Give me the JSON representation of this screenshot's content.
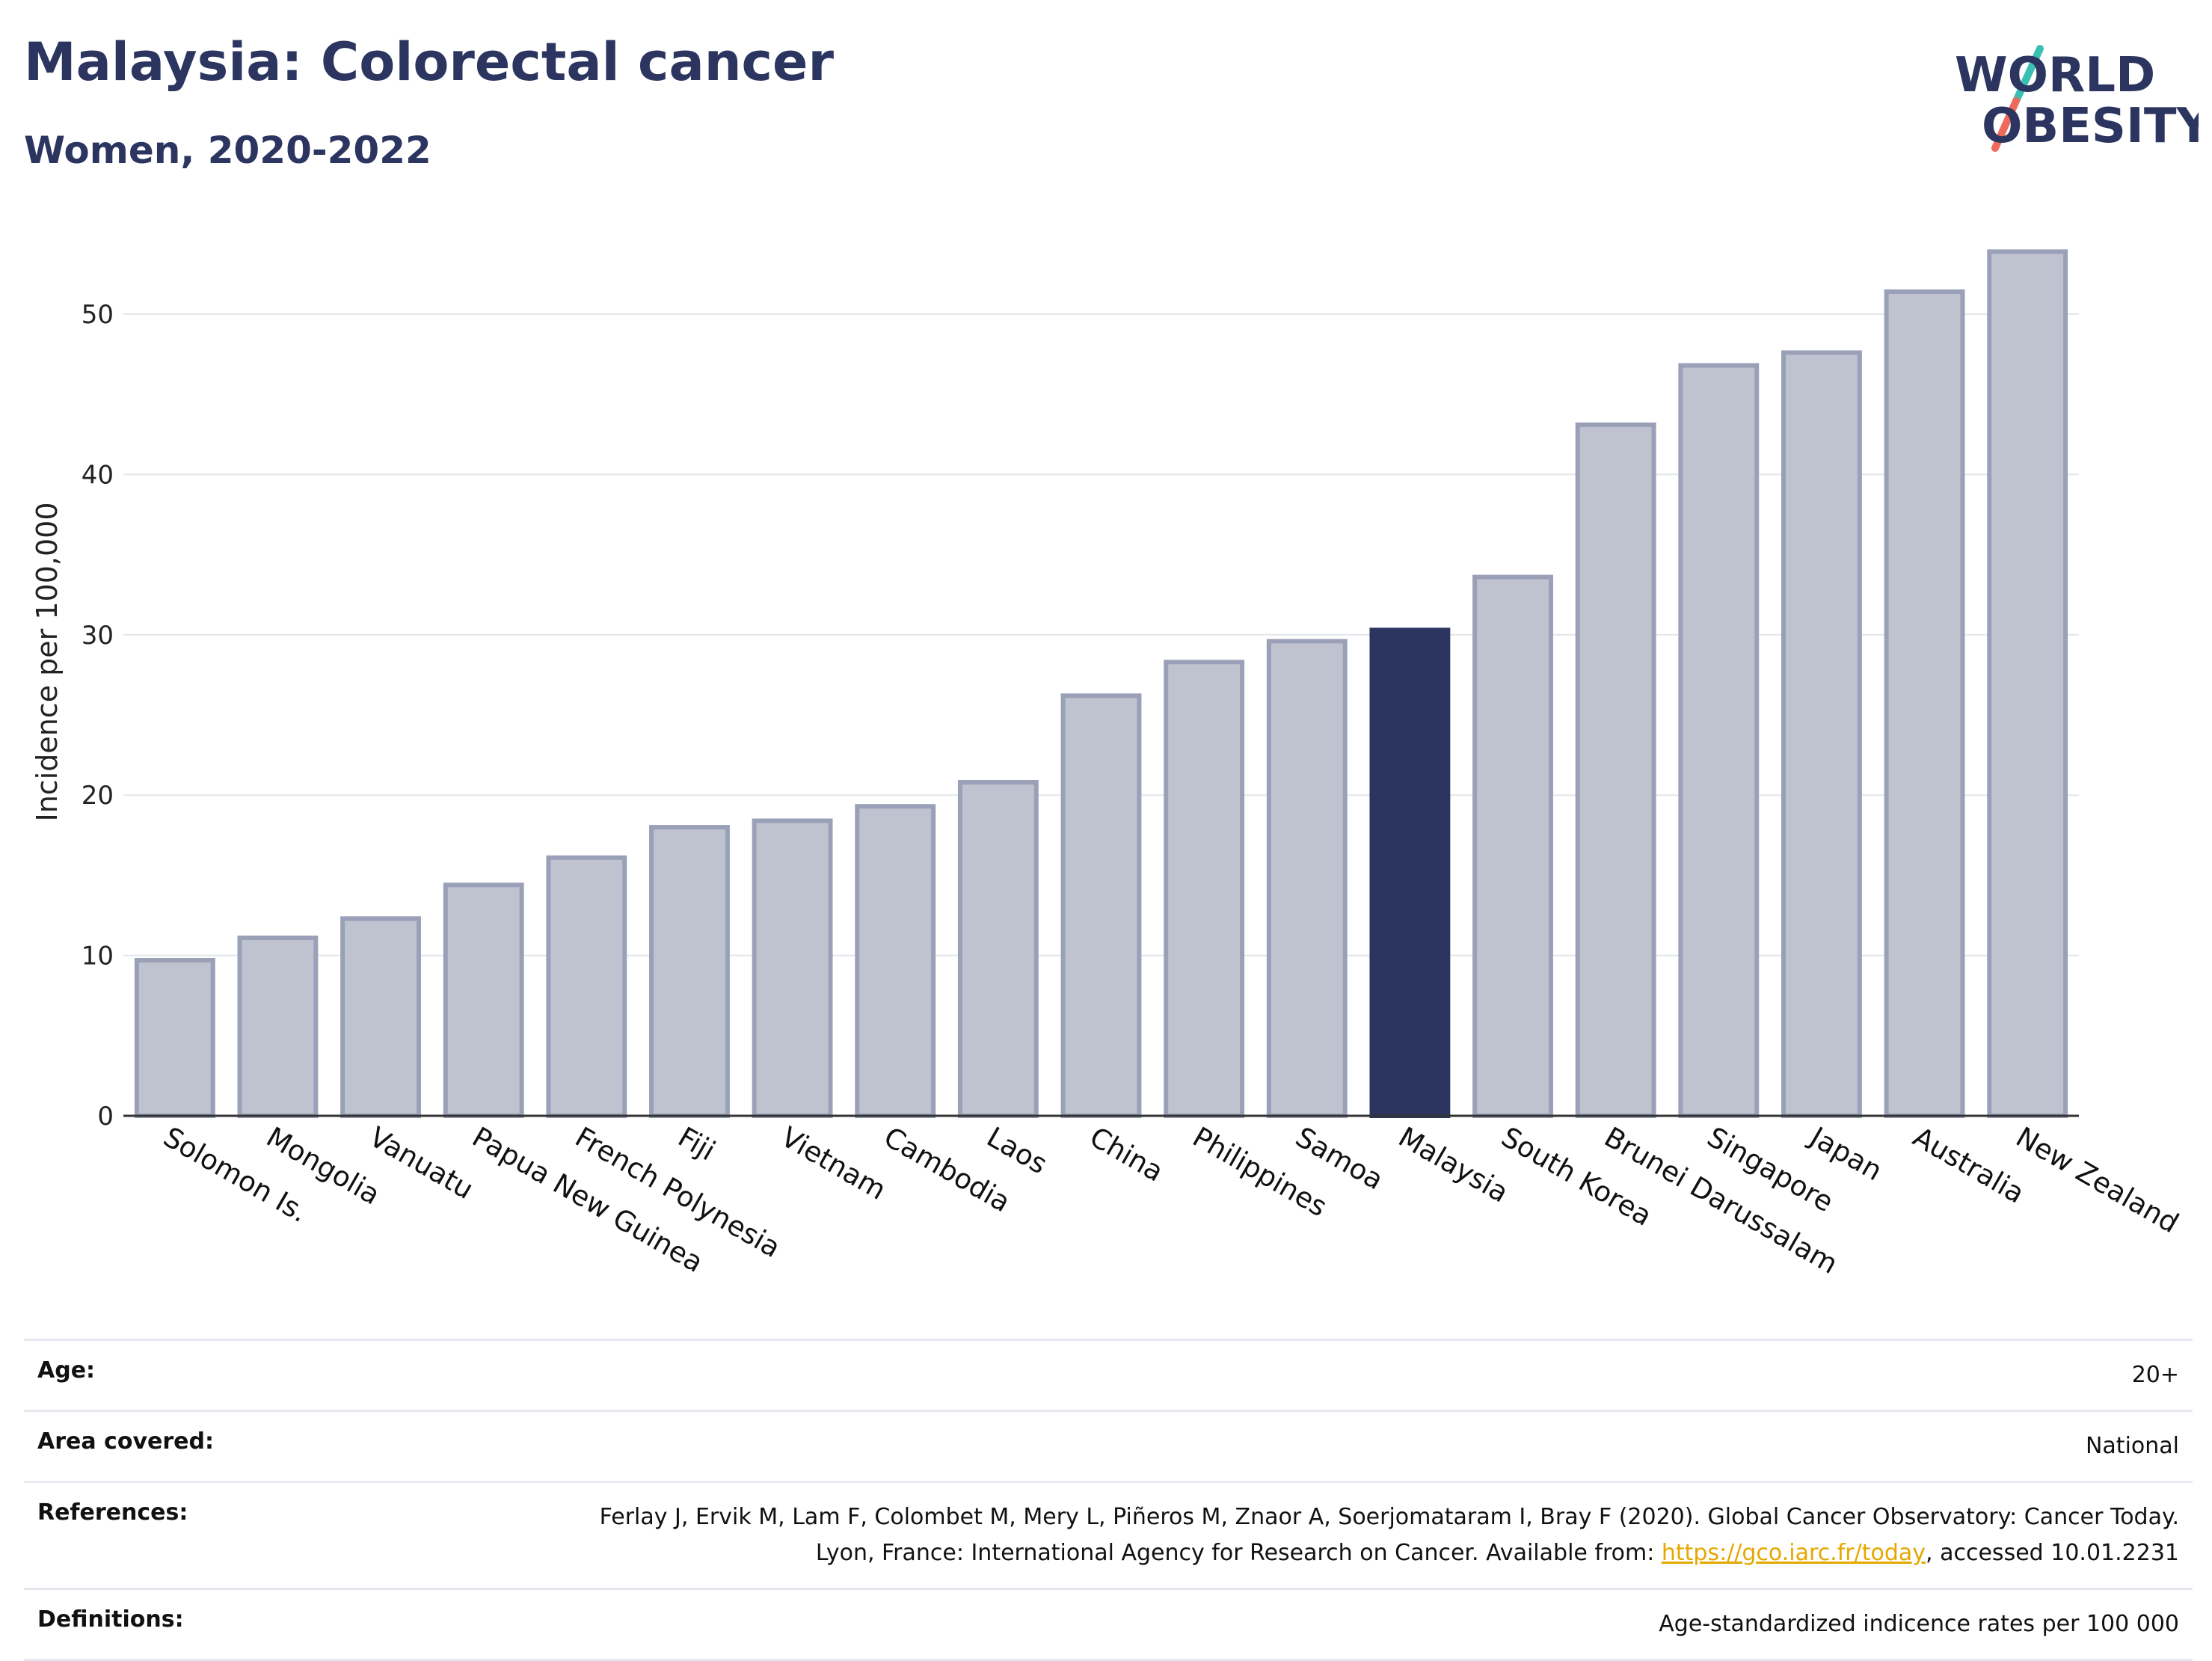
{
  "header": {
    "title": "Malaysia: Colorectal cancer",
    "subtitle": "Women, 2020-2022"
  },
  "logo": {
    "text_line1": "WORLD",
    "text_line2": "OBESITY",
    "colors": {
      "text": "#2b3560",
      "slash_top": "#3bbfb3",
      "slash_bottom": "#ef6a5a"
    }
  },
  "chart_data": {
    "type": "bar",
    "title": "Malaysia: Colorectal cancer",
    "subtitle": "Women, 2020-2022",
    "ylabel": "Incidence per 100,000",
    "xlabel": "",
    "ylim": [
      0,
      55
    ],
    "yticks": [
      0,
      10,
      20,
      30,
      40,
      50
    ],
    "grid": true,
    "highlight": "Malaysia",
    "colors": {
      "bar": "#bfc2cf",
      "bar_border": "#9aa0b7",
      "highlight": "#2b3560",
      "grid": "#e4e6ec",
      "axis": "#333333"
    },
    "categories": [
      "Solomon Is.",
      "Mongolia",
      "Vanuatu",
      "Papua New Guinea",
      "French Polynesia",
      "Fiji",
      "Vietnam",
      "Cambodia",
      "Laos",
      "China",
      "Philippines",
      "Samoa",
      "Malaysia",
      "South Korea",
      "Brunei Darussalam",
      "Singapore",
      "Japan",
      "Australia",
      "New Zealand"
    ],
    "values": [
      9.7,
      11.1,
      12.3,
      14.4,
      16.1,
      18.0,
      18.4,
      19.3,
      20.8,
      26.2,
      28.3,
      29.6,
      30.3,
      33.6,
      43.1,
      46.8,
      47.6,
      51.4,
      53.9
    ]
  },
  "info": {
    "age_label": "Age:",
    "age_value": "20+",
    "area_label": "Area covered:",
    "area_value": "National",
    "references_label": "References:",
    "references_text_1": "Ferlay J, Ervik M, Lam F, Colombet M, Mery L, Piñeros M, Znaor A, Soerjomataram I, Bray F (2020). Global Cancer Observatory: Cancer Today. Lyon, France: International Agency for Research on Cancer. Available from: ",
    "references_link": "https://gco.iarc.fr/today",
    "references_text_2": ", accessed 10.01.2231",
    "definitions_label": "Definitions:",
    "definitions_value": "Age-standardized indicence rates per 100 000"
  }
}
